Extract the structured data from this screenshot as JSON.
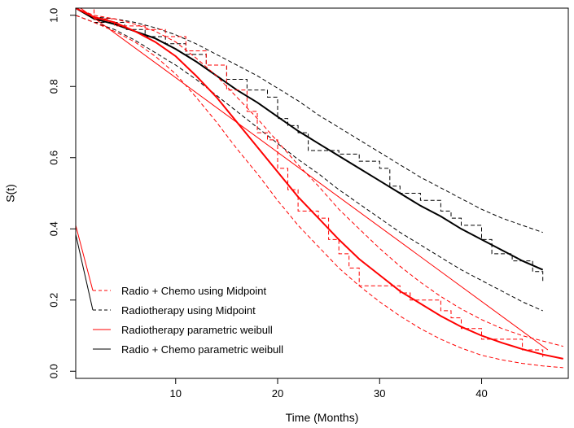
{
  "chart_data": {
    "type": "line",
    "title": "",
    "xlabel": "Time (Months)",
    "ylabel": "S(t)",
    "xlim": [
      0.2,
      48.5
    ],
    "ylim": [
      -0.02,
      1.02
    ],
    "x_ticks": [
      10,
      20,
      30,
      40
    ],
    "x_tick_labels": [
      "10",
      "20",
      "30",
      "40"
    ],
    "y_ticks": [
      0.0,
      0.2,
      0.4,
      0.6,
      0.8,
      1.0
    ],
    "y_tick_labels": [
      "0.0",
      "0.2",
      "0.4",
      "0.6",
      "0.8",
      "1.0"
    ],
    "grid": false,
    "legend_position": "bottom-left",
    "legend": [
      {
        "label": "Radio + Chemo using Midpoint",
        "color": "#ff0000",
        "dash": "dashed"
      },
      {
        "label": "Radiotherapy  using Midpoint",
        "color": "#000000",
        "dash": "dashed"
      },
      {
        "label": "Radiotherapy parametric weibull",
        "color": "#ff0000",
        "dash": "solid"
      },
      {
        "label": "Radio + Chemo parametric weibull",
        "color": "#000000",
        "dash": "solid"
      }
    ],
    "series": [
      {
        "color": "#000000",
        "width": 2,
        "dash": "none",
        "step": false,
        "x": [
          0.2,
          2,
          4,
          6,
          8,
          10,
          12,
          14,
          16,
          18,
          20,
          22,
          24,
          26,
          28,
          30,
          32,
          34,
          36,
          38,
          40,
          42,
          44,
          46
        ],
        "y": [
          1.02,
          0.99,
          0.975,
          0.955,
          0.935,
          0.905,
          0.87,
          0.83,
          0.79,
          0.755,
          0.715,
          0.675,
          0.64,
          0.605,
          0.57,
          0.535,
          0.5,
          0.465,
          0.435,
          0.4,
          0.37,
          0.34,
          0.31,
          0.285
        ]
      },
      {
        "color": "#000000",
        "width": 1,
        "dash": "5,3",
        "step": false,
        "x": [
          0.2,
          2,
          4,
          6,
          8,
          10,
          12,
          14,
          16,
          18,
          20,
          22,
          24,
          26,
          28,
          30,
          32,
          34,
          36,
          38,
          40,
          42,
          44,
          46
        ],
        "y": [
          1.02,
          0.995,
          0.99,
          0.98,
          0.965,
          0.945,
          0.92,
          0.89,
          0.86,
          0.83,
          0.795,
          0.76,
          0.72,
          0.685,
          0.65,
          0.615,
          0.58,
          0.545,
          0.515,
          0.485,
          0.455,
          0.43,
          0.41,
          0.39
        ]
      },
      {
        "color": "#000000",
        "width": 1,
        "dash": "5,3",
        "step": false,
        "x": [
          0.2,
          2,
          4,
          6,
          8,
          10,
          12,
          14,
          16,
          18,
          20,
          22,
          24,
          26,
          28,
          30,
          32,
          34,
          36,
          38,
          40,
          42,
          44,
          46
        ],
        "y": [
          1.0,
          0.98,
          0.96,
          0.93,
          0.895,
          0.86,
          0.82,
          0.775,
          0.73,
          0.685,
          0.64,
          0.595,
          0.555,
          0.51,
          0.47,
          0.43,
          0.39,
          0.355,
          0.32,
          0.285,
          0.255,
          0.225,
          0.195,
          0.17
        ]
      },
      {
        "color": "#000000",
        "width": 1,
        "dash": "5,3",
        "step": true,
        "x": [
          0.2,
          2,
          5,
          7,
          9,
          11,
          13,
          15,
          17,
          19,
          20,
          21,
          22,
          23,
          26,
          28,
          30,
          31,
          32,
          34,
          36,
          37,
          38,
          40,
          41,
          43,
          45,
          46
        ],
        "y": [
          1.02,
          0.98,
          0.96,
          0.94,
          0.92,
          0.89,
          0.86,
          0.82,
          0.79,
          0.77,
          0.71,
          0.69,
          0.67,
          0.62,
          0.61,
          0.59,
          0.57,
          0.52,
          0.5,
          0.48,
          0.45,
          0.43,
          0.41,
          0.37,
          0.33,
          0.31,
          0.28,
          0.25
        ]
      },
      {
        "color": "#ff0000",
        "width": 2,
        "dash": "none",
        "step": false,
        "x": [
          0.2,
          2,
          4,
          6,
          8,
          10,
          12,
          14,
          16,
          18,
          20,
          22,
          24,
          26,
          28,
          30,
          32,
          34,
          36,
          38,
          40,
          42,
          44,
          46,
          48
        ],
        "y": [
          1.02,
          0.995,
          0.98,
          0.955,
          0.925,
          0.885,
          0.83,
          0.77,
          0.7,
          0.63,
          0.56,
          0.49,
          0.43,
          0.37,
          0.315,
          0.27,
          0.225,
          0.19,
          0.155,
          0.125,
          0.1,
          0.08,
          0.062,
          0.047,
          0.035
        ]
      },
      {
        "color": "#ff0000",
        "width": 1,
        "dash": "none",
        "step": false,
        "x": [
          0.2,
          46.5
        ],
        "y": [
          1.03,
          0.06
        ]
      },
      {
        "color": "#ff0000",
        "width": 1,
        "dash": "5,3",
        "step": false,
        "x": [
          0.2,
          2,
          4,
          6,
          8,
          10,
          12,
          14,
          16,
          18,
          20,
          22,
          24,
          26,
          28,
          30,
          32,
          34,
          36,
          38,
          40,
          42,
          44,
          46,
          48
        ],
        "y": [
          1.02,
          1.0,
          0.99,
          0.975,
          0.955,
          0.925,
          0.88,
          0.83,
          0.77,
          0.71,
          0.645,
          0.58,
          0.52,
          0.455,
          0.4,
          0.345,
          0.295,
          0.25,
          0.21,
          0.175,
          0.145,
          0.12,
          0.1,
          0.085,
          0.07
        ]
      },
      {
        "color": "#ff0000",
        "width": 1,
        "dash": "5,3",
        "step": false,
        "x": [
          0.2,
          2,
          4,
          6,
          8,
          10,
          12,
          14,
          16,
          18,
          20,
          22,
          24,
          26,
          28,
          30,
          32,
          34,
          36,
          38,
          40,
          42,
          44,
          46,
          48
        ],
        "y": [
          1.0,
          0.98,
          0.955,
          0.925,
          0.885,
          0.835,
          0.77,
          0.7,
          0.625,
          0.555,
          0.48,
          0.41,
          0.35,
          0.29,
          0.24,
          0.195,
          0.155,
          0.12,
          0.09,
          0.065,
          0.045,
          0.032,
          0.022,
          0.015,
          0.01
        ]
      },
      {
        "color": "#ff0000",
        "width": 1,
        "dash": "5,3",
        "step": true,
        "x": [
          0.2,
          2,
          4,
          7,
          9,
          11,
          13,
          15,
          17,
          18,
          19,
          20,
          21,
          22,
          24,
          25,
          26,
          27,
          28,
          32,
          33,
          36,
          37,
          38,
          40,
          44,
          46
        ],
        "y": [
          1.02,
          0.99,
          0.97,
          0.96,
          0.94,
          0.9,
          0.86,
          0.79,
          0.73,
          0.67,
          0.65,
          0.57,
          0.51,
          0.45,
          0.43,
          0.37,
          0.33,
          0.29,
          0.24,
          0.22,
          0.2,
          0.17,
          0.15,
          0.12,
          0.09,
          0.06,
          0.04
        ]
      }
    ]
  }
}
